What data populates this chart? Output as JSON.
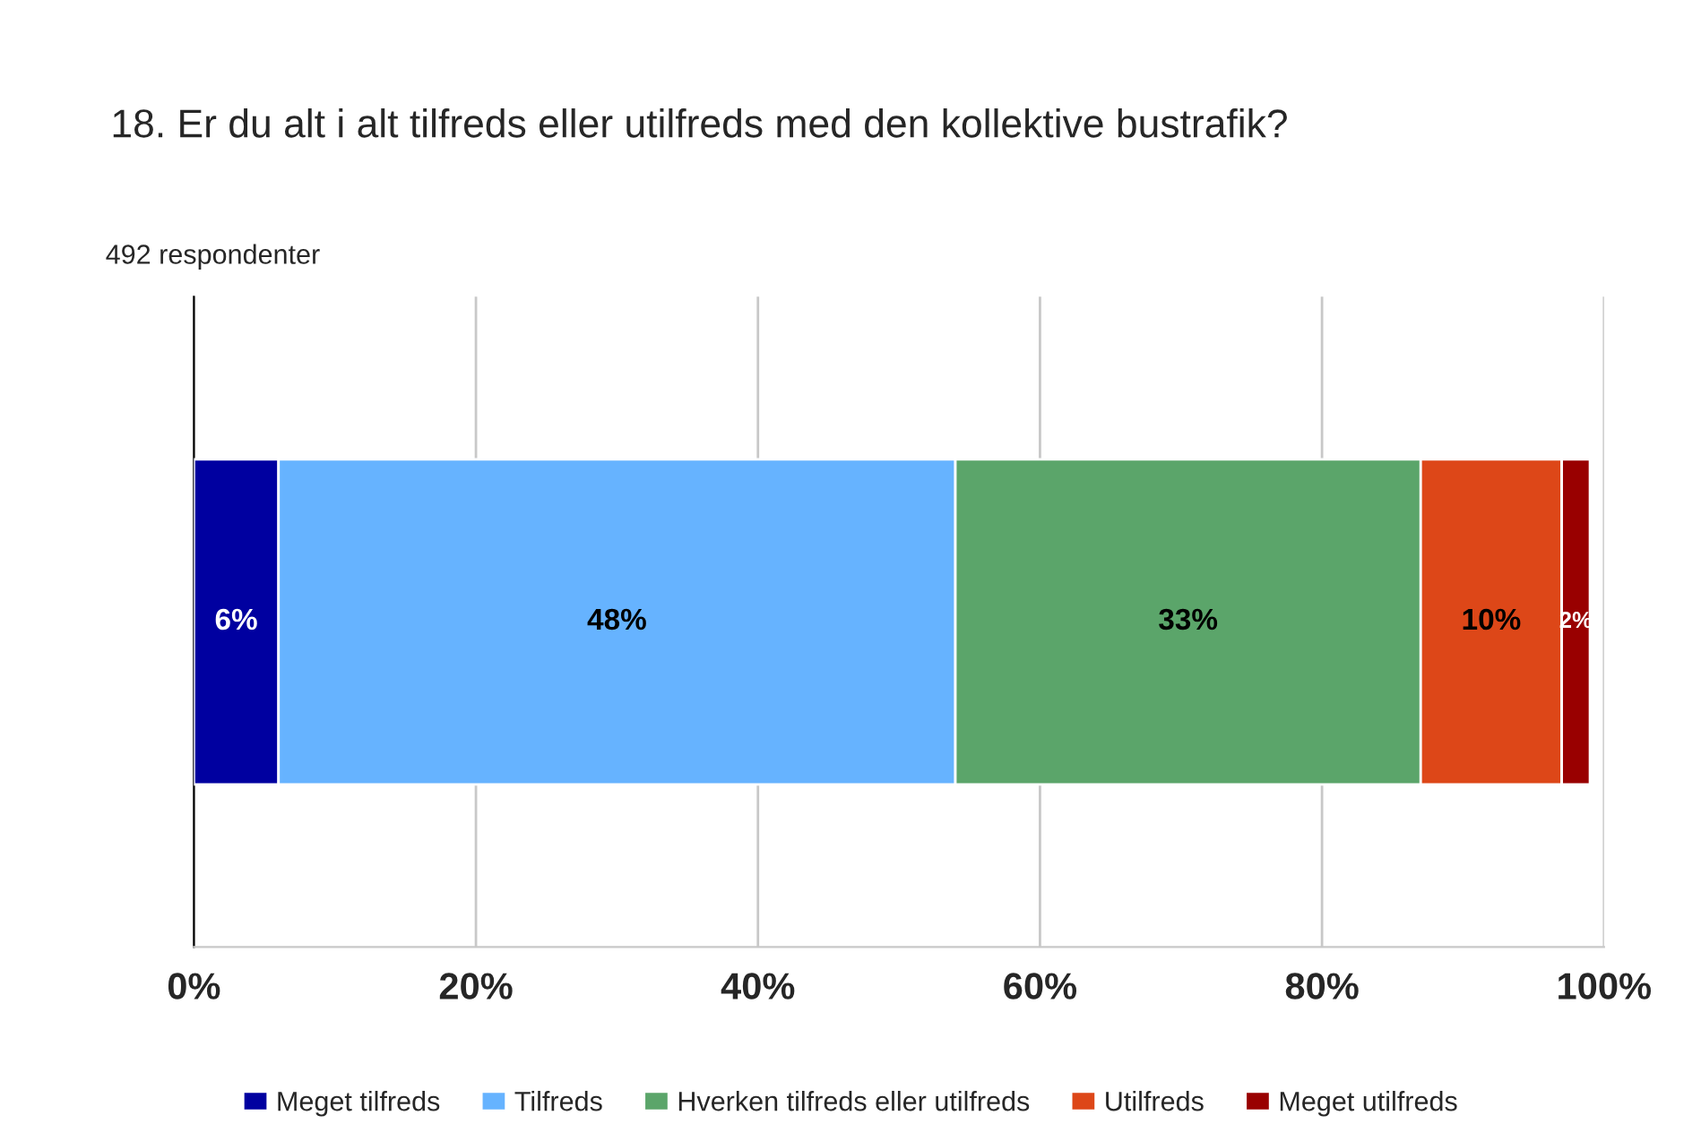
{
  "chart_data": {
    "type": "bar",
    "orientation": "horizontal",
    "stacked": true,
    "title": "18. Er du alt i alt tilfreds eller utilfreds med den kollektive bustrafik?",
    "subtitle": "492 respondenter",
    "categories": [
      null
    ],
    "series": [
      {
        "name": "Meget tilfreds",
        "color": "#0000a0",
        "values": [
          6
        ],
        "value_labels": [
          "6%"
        ]
      },
      {
        "name": "Tilfreds",
        "color": "#66b3ff",
        "values": [
          48
        ],
        "value_labels": [
          "48%"
        ]
      },
      {
        "name": "Hverken tilfreds eller utilfreds",
        "color": "#5ba56a",
        "values": [
          33
        ],
        "value_labels": [
          "33%"
        ]
      },
      {
        "name": "Utilfreds",
        "color": "#dd4718",
        "values": [
          10
        ],
        "value_labels": [
          "10%"
        ]
      },
      {
        "name": "Meget utilfreds",
        "color": "#990000",
        "values": [
          2
        ],
        "value_labels": [
          "2%"
        ]
      }
    ],
    "xlim": [
      0,
      100
    ],
    "xticks": [
      {
        "value": 0,
        "label": "0%"
      },
      {
        "value": 20,
        "label": "20%"
      },
      {
        "value": 40,
        "label": "40%"
      },
      {
        "value": 60,
        "label": "60%"
      },
      {
        "value": 80,
        "label": "80%"
      },
      {
        "value": 100,
        "label": "100%"
      }
    ],
    "grid": "x",
    "legend": "bottom"
  }
}
